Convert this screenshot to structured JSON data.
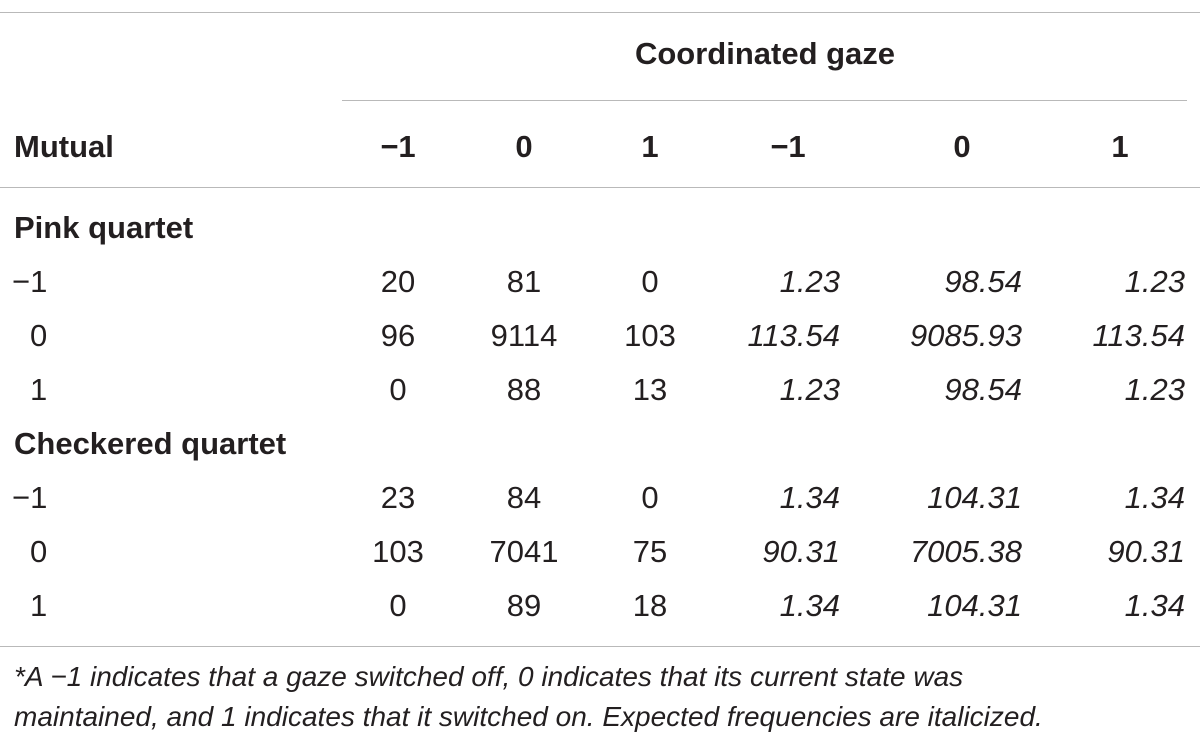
{
  "table": {
    "group_header": "Coordinated gaze",
    "row_header": "Mutual",
    "column_labels": [
      "−1",
      "0",
      "1",
      "−1",
      "0",
      "1"
    ],
    "sections": [
      {
        "title": "Pink quartet",
        "rows": [
          {
            "label": "−1",
            "observed": [
              "20",
              "81",
              "0"
            ],
            "expected": [
              "1.23",
              "98.54",
              "1.23"
            ]
          },
          {
            "label": "0",
            "observed": [
              "96",
              "9114",
              "103"
            ],
            "expected": [
              "113.54",
              "9085.93",
              "113.54"
            ]
          },
          {
            "label": "1",
            "observed": [
              "0",
              "88",
              "13"
            ],
            "expected": [
              "1.23",
              "98.54",
              "1.23"
            ]
          }
        ]
      },
      {
        "title": "Checkered quartet",
        "rows": [
          {
            "label": "−1",
            "observed": [
              "23",
              "84",
              "0"
            ],
            "expected": [
              "1.34",
              "104.31",
              "1.34"
            ]
          },
          {
            "label": "0",
            "observed": [
              "103",
              "7041",
              "75"
            ],
            "expected": [
              "90.31",
              "7005.38",
              "90.31"
            ]
          },
          {
            "label": "1",
            "observed": [
              "0",
              "89",
              "18"
            ],
            "expected": [
              "1.34",
              "104.31",
              "1.34"
            ]
          }
        ]
      }
    ],
    "footnote_line1": "*A −1 indicates that a gaze switched off, 0 indicates that its current state was",
    "footnote_line2": "maintained, and 1 indicates that it switched on. Expected frequencies are italicized."
  }
}
